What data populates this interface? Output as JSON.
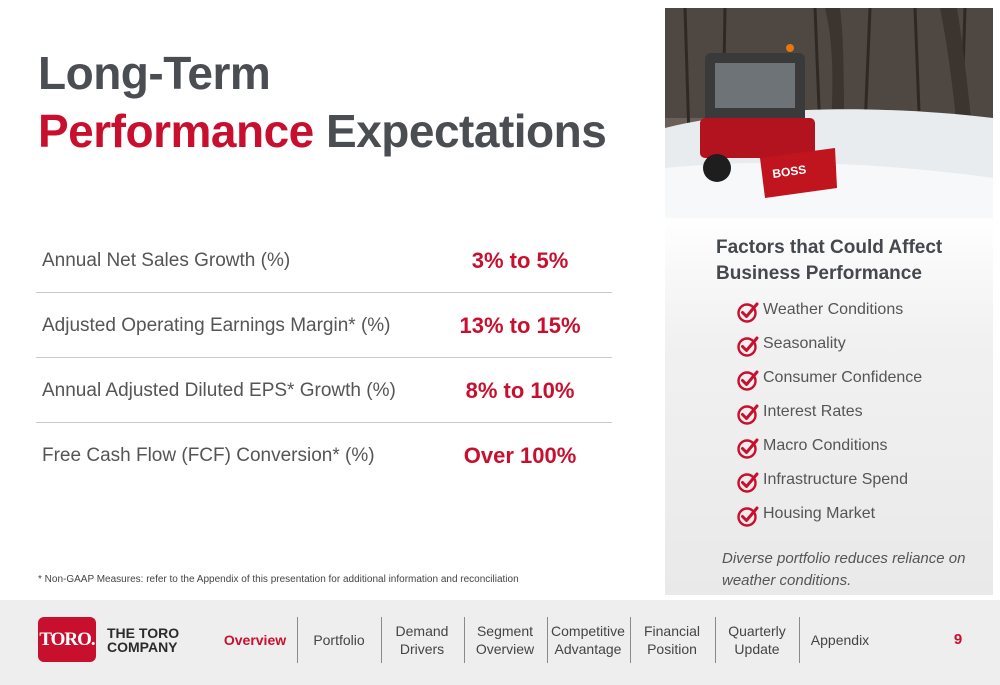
{
  "title": {
    "line1": "Long-Term",
    "line2_red": "Performance",
    "line2_rest": "Expectations"
  },
  "table": {
    "rows": [
      [
        "Annual Net Sales Growth (%)",
        "3% to 5%"
      ],
      [
        "Adjusted Operating Earnings Margin* (%)",
        "13% to 15%"
      ],
      [
        "Annual Adjusted Diluted EPS* Growth (%)",
        "8% to 10%"
      ],
      [
        "Free Cash Flow (FCF) Conversion* (%)",
        "Over 100%"
      ]
    ]
  },
  "footnote": "* Non-GAAP Measures: refer to the Appendix of this presentation for additional information and reconciliation",
  "factors": {
    "heading": "Factors that Could Affect Business Performance",
    "items": [
      "Weather Conditions",
      "Seasonality",
      "Consumer Confidence",
      "Interest Rates",
      "Macro Conditions",
      "Infrastructure Spend",
      "Housing Market"
    ],
    "note": "Diverse portfolio reduces reliance on weather conditions."
  },
  "footer": {
    "logo": "TORO.",
    "company": "THE TORO COMPANY",
    "nav": [
      "Overview",
      "Portfolio",
      "Demand Drivers",
      "Segment Overview",
      "Competitive Advantage",
      "Financial Position",
      "Quarterly Update",
      "Appendix"
    ],
    "active": 0,
    "page": 9
  }
}
